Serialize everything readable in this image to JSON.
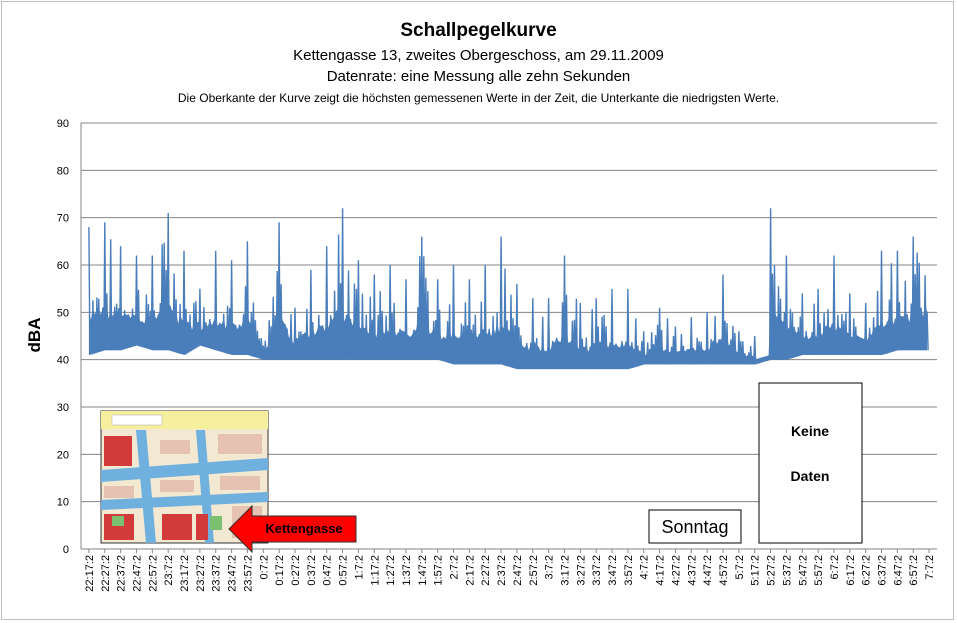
{
  "chart_data": {
    "type": "line",
    "title": "Schallpegelkurve",
    "subtitle_lines": [
      "Kettengasse 13, zweites Obergeschoss, am 29.11.2009",
      "Datenrate: eine Messung alle zehn Sekunden",
      "Die Oberkante der Kurve zeigt die höchsten gemessenen Werte  in der Zeit, die Unterkante  die niedrigsten Werte."
    ],
    "ylabel": "dBA",
    "ylim": [
      0,
      90
    ],
    "yticks": [
      0,
      10,
      20,
      30,
      40,
      50,
      60,
      70,
      80,
      90
    ],
    "grid": true,
    "x_tick_labels": [
      "22:17:2",
      "22:27:2",
      "22:37:2",
      "22:47:2",
      "22:57:2",
      "23:7:2",
      "23:17:2",
      "23:27:2",
      "23:37:2",
      "23:47:2",
      "23:57:2",
      "0:7:2",
      "0:17:2",
      "0:27:2",
      "0:37:2",
      "0:47:2",
      "0:57:2",
      "1:7:2",
      "1:17:2",
      "1:27:2",
      "1:37:2",
      "1:47:2",
      "1:57:2",
      "2:7:2",
      "2:17:2",
      "2:27:2",
      "2:37:2",
      "2:47:2",
      "2:57:2",
      "3:7:2",
      "3:17:2",
      "3:27:2",
      "3:37:2",
      "3:47:2",
      "3:57:2",
      "4:7:2",
      "4:17:2",
      "4:27:2",
      "4:37:2",
      "4:47:2",
      "4:57:2",
      "5:7:2",
      "5:17:2",
      "5:27:2",
      "5:37:2",
      "5:47:2",
      "5:57:2",
      "6:7:2",
      "6:17:2",
      "6:27:2",
      "6:37:2",
      "6:47:2",
      "6:57:2",
      "7:7:2"
    ],
    "series_color": "#4a7ebb",
    "envelope": {
      "x": [
        "22:17:2",
        "22:27:2",
        "22:37:2",
        "22:47:2",
        "22:57:2",
        "23:7:2",
        "23:17:2",
        "23:27:2",
        "23:37:2",
        "23:47:2",
        "23:57:2",
        "0:7:2",
        "0:17:2",
        "0:27:2",
        "0:37:2",
        "0:47:2",
        "0:57:2",
        "1:7:2",
        "1:17:2",
        "1:27:2",
        "1:37:2",
        "1:47:2",
        "1:57:2",
        "2:7:2",
        "2:17:2",
        "2:27:2",
        "2:37:2",
        "2:47:2",
        "2:57:2",
        "3:7:2",
        "3:17:2",
        "3:27:2",
        "3:37:2",
        "3:47:2",
        "3:57:2",
        "4:7:2",
        "4:17:2",
        "4:27:2",
        "4:37:2",
        "4:47:2",
        "4:57:2",
        "5:7:2",
        "5:17:2",
        "5:27:2",
        "5:37:2",
        "5:47:2",
        "5:57:2",
        "6:7:2",
        "6:17:2",
        "6:27:2",
        "6:37:2",
        "6:47:2",
        "6:57:2",
        "7:7:2"
      ],
      "max": [
        68,
        69,
        64,
        62,
        62,
        71,
        63,
        55,
        63,
        61,
        65,
        43,
        69,
        51,
        59,
        64,
        72,
        61,
        58,
        60,
        57,
        66,
        57,
        60,
        57,
        60,
        66,
        56,
        53,
        53,
        62,
        52,
        53,
        55,
        55,
        46,
        51,
        47,
        49,
        50,
        58,
        46,
        45,
        72,
        62,
        54,
        55,
        62,
        54,
        52,
        63,
        63,
        66,
        71
      ],
      "min": [
        41,
        42,
        42,
        43,
        42,
        42,
        41,
        43,
        42,
        41,
        41,
        40,
        40,
        40,
        40,
        40,
        40,
        40,
        40,
        40,
        40,
        40,
        40,
        39,
        39,
        39,
        39,
        38,
        38,
        38,
        38,
        38,
        38,
        38,
        38,
        39,
        39,
        39,
        39,
        39,
        39,
        39,
        39,
        40,
        40,
        41,
        41,
        41,
        41,
        41,
        41,
        42,
        42,
        42
      ]
    },
    "no_data_range": [
      "5:17:2",
      "5:27:2"
    ],
    "annotations": {
      "sunday": "Sonntag",
      "no_data_line1": "Keine",
      "no_data_line2": "Daten",
      "map_label": "Kettengasse",
      "arrow_color": "#ff0000"
    }
  }
}
